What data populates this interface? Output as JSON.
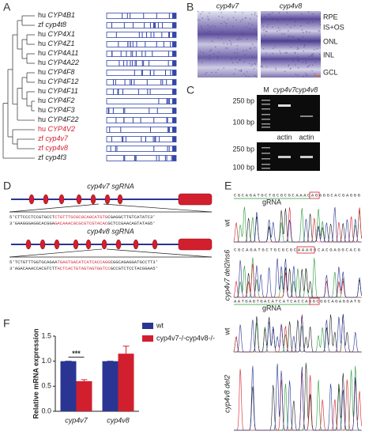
{
  "panels": {
    "A": {
      "label": "A",
      "leaves": [
        {
          "species": "hu",
          "gene": "CYP4B1",
          "highlight": false
        },
        {
          "species": "zf",
          "gene": "cyp4t8",
          "highlight": false
        },
        {
          "species": "hu",
          "gene": "CYP4X1",
          "highlight": false
        },
        {
          "species": "hu",
          "gene": "CYP4Z1",
          "highlight": false
        },
        {
          "species": "hu",
          "gene": "CYP4A11",
          "highlight": false
        },
        {
          "species": "hu",
          "gene": "CYP4A22",
          "highlight": false
        },
        {
          "species": "hu",
          "gene": "CYP4F8",
          "highlight": false
        },
        {
          "species": "hu",
          "gene": "CYP4F12",
          "highlight": false
        },
        {
          "species": "hu",
          "gene": "CYP4F11",
          "highlight": false
        },
        {
          "species": "hu",
          "gene": "CYP4F2",
          "highlight": false
        },
        {
          "species": "hu",
          "gene": "CYP4F3",
          "highlight": false
        },
        {
          "species": "hu",
          "gene": "CYP4F22",
          "highlight": false
        },
        {
          "species": "hu",
          "gene": "CYP4V2",
          "highlight": true
        },
        {
          "species": "zf",
          "gene": "cyp4v7",
          "highlight": true
        },
        {
          "species": "zf",
          "gene": "cyp4v8",
          "highlight": true
        },
        {
          "species": "zf",
          "gene": "cyp4f3",
          "highlight": false
        }
      ]
    },
    "B": {
      "label": "B",
      "images": [
        "cyp4v7",
        "cyp4v8"
      ],
      "layers": [
        "RPE",
        "IS+OS",
        "ONL",
        "INL",
        "GCL"
      ]
    },
    "C": {
      "label": "C",
      "lanes": [
        "M",
        "cyp4v7",
        "cyp4v8"
      ],
      "ladder_top": [
        "250 bp",
        "100 bp"
      ],
      "control": [
        "actin",
        "actin"
      ],
      "ladder_bottom": [
        "250 bp",
        "100 bp"
      ]
    },
    "D": {
      "label": "D",
      "constructs": [
        {
          "title": "cyp4v7 sgRNA",
          "top": [
            "5'CTTCCCTCCGTGCCT",
            "CTGTTTGCGCGCAGCATGTG",
            "CGAGGCTTGTCATATC3'"
          ],
          "bottom": [
            "3'GAAGGGAGGCACGGA",
            "GACAAACGCGCGTCGTACAC",
            "GCTCCGAACAGTATAG5'"
          ]
        },
        {
          "title": "cyp4v8 sgRNA",
          "top": [
            "5'TCTGTTTGGTGCAGAA",
            "TGAGTGACATCATCACCAGG",
            "CGGCAGAGGATGCCTT3'"
          ],
          "bottom": [
            "3'AGACAAACCACGTCTT",
            "ACTCACTGTAGTAGTGGTCC",
            "GCCGTCTCCTACGGAA5'"
          ]
        }
      ]
    },
    "E": {
      "label": "E",
      "tracks": [
        {
          "sequence": "CGCAGATGCTGCGCGCAAACAGAGGCACGAGGG",
          "guide": "gRNA",
          "label": "wt"
        },
        {
          "sequence": "CGCAGATGCTGCGCGCAAAGGCACGAGGCACG",
          "label": "cyp4v7 del2ins6"
        },
        {
          "sequence": "AATGAGTGACATCATCACCAGGCGGCAGAGGATG",
          "guide": "gRNA",
          "label": "wt"
        },
        {
          "label": "cyp4v8 del2"
        }
      ]
    },
    "F": {
      "label": "F",
      "chart_data": {
        "type": "bar",
        "y_label": "Relative mRNA expression",
        "categories": [
          "cyp4v7",
          "cyp4v8"
        ],
        "series": [
          {
            "name": "wt",
            "color": "#2a3593",
            "values": [
              1.0,
              1.0
            ],
            "errors": [
              0,
              0
            ]
          },
          {
            "name": "cyp4v7-/-cyp4v8-/-",
            "color": "#d21f2e",
            "values": [
              0.6,
              1.15
            ],
            "errors": [
              0.03,
              0.15
            ]
          }
        ],
        "ylim": [
          0,
          1.5
        ],
        "yticks": [
          {
            "value": 0,
            "label": "0.0"
          },
          {
            "value": 0.5,
            "label": "0.5"
          },
          {
            "value": 1,
            "label": "1.0"
          },
          {
            "value": 1.5,
            "label": "1.5"
          }
        ],
        "annotation": "***"
      }
    }
  }
}
